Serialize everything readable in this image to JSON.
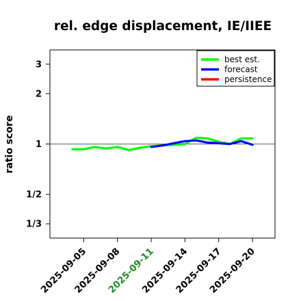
{
  "chart_data": {
    "type": "line",
    "title": "rel. edge displacement, IE/IIEE",
    "ylabel": "ratio score",
    "y_scale": "log",
    "ylim": [
      0.274,
      3.65
    ],
    "xlim": [
      "2025-09-02",
      "2025-09-22"
    ],
    "yticks": [
      {
        "value": 0.3333,
        "label": "1/3"
      },
      {
        "value": 0.5,
        "label": "1/2"
      },
      {
        "value": 1,
        "label": "1"
      },
      {
        "value": 2,
        "label": "2"
      },
      {
        "value": 3,
        "label": "3"
      }
    ],
    "xticks": [
      {
        "date": "2025-09-05",
        "label": "2025-09-05",
        "color": "#000000"
      },
      {
        "date": "2025-09-08",
        "label": "2025-09-08",
        "color": "#000000"
      },
      {
        "date": "2025-09-11",
        "label": "2025-09-11",
        "color": "#228b22"
      },
      {
        "date": "2025-09-14",
        "label": "2025-09-14",
        "color": "#000000"
      },
      {
        "date": "2025-09-17",
        "label": "2025-09-17",
        "color": "#000000"
      },
      {
        "date": "2025-09-20",
        "label": "2025-09-20",
        "color": "#000000"
      }
    ],
    "reference_line": 1,
    "legend_position": "top-right",
    "series": [
      {
        "name": "best est.",
        "color": "#00ff00",
        "points": [
          [
            "2025-09-04",
            0.93
          ],
          [
            "2025-09-05",
            0.93
          ],
          [
            "2025-09-06",
            0.96
          ],
          [
            "2025-09-07",
            0.94
          ],
          [
            "2025-09-08",
            0.96
          ],
          [
            "2025-09-09",
            0.92
          ],
          [
            "2025-09-10",
            0.95
          ],
          [
            "2025-09-11",
            0.97
          ],
          [
            "2025-09-12",
            0.98
          ],
          [
            "2025-09-13",
            0.99
          ],
          [
            "2025-09-14",
            1.0
          ],
          [
            "2025-09-15",
            1.09
          ],
          [
            "2025-09-16",
            1.08
          ],
          [
            "2025-09-17",
            1.03
          ],
          [
            "2025-09-18",
            1.0
          ],
          [
            "2025-09-19",
            1.08
          ],
          [
            "2025-09-20",
            1.08
          ]
        ]
      },
      {
        "name": "forecast",
        "color": "#0000ff",
        "points": [
          [
            "2025-09-11",
            0.96
          ],
          [
            "2025-09-12",
            0.98
          ],
          [
            "2025-09-13",
            1.01
          ],
          [
            "2025-09-14",
            1.04
          ],
          [
            "2025-09-15",
            1.05
          ],
          [
            "2025-09-16",
            1.02
          ],
          [
            "2025-09-17",
            1.01
          ],
          [
            "2025-09-18",
            1.0
          ],
          [
            "2025-09-19",
            1.04
          ],
          [
            "2025-09-20",
            0.99
          ]
        ]
      },
      {
        "name": "persistence",
        "color": "#ff0000",
        "points": []
      }
    ]
  }
}
